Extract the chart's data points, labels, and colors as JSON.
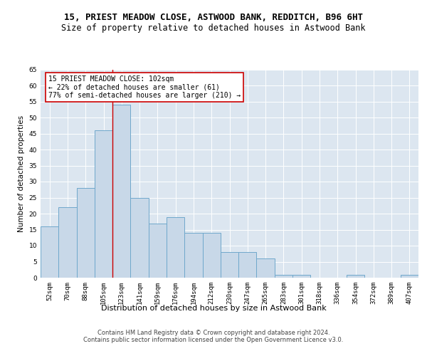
{
  "title": "15, PRIEST MEADOW CLOSE, ASTWOOD BANK, REDDITCH, B96 6HT",
  "subtitle": "Size of property relative to detached houses in Astwood Bank",
  "xlabel": "Distribution of detached houses by size in Astwood Bank",
  "ylabel": "Number of detached properties",
  "categories": [
    "52sqm",
    "70sqm",
    "88sqm",
    "105sqm",
    "123sqm",
    "141sqm",
    "159sqm",
    "176sqm",
    "194sqm",
    "212sqm",
    "230sqm",
    "247sqm",
    "265sqm",
    "283sqm",
    "301sqm",
    "318sqm",
    "336sqm",
    "354sqm",
    "372sqm",
    "389sqm",
    "407sqm"
  ],
  "values": [
    16,
    22,
    28,
    46,
    54,
    25,
    17,
    19,
    14,
    14,
    8,
    8,
    6,
    1,
    1,
    0,
    0,
    1,
    0,
    0,
    1
  ],
  "bar_color": "#c8d8e8",
  "bar_edge_color": "#6fa8cc",
  "vline_x": 3.5,
  "vline_color": "#cc0000",
  "annotation_text": "15 PRIEST MEADOW CLOSE: 102sqm\n← 22% of detached houses are smaller (61)\n77% of semi-detached houses are larger (210) →",
  "annotation_box_color": "#ffffff",
  "annotation_box_edge": "#cc0000",
  "ylim": [
    0,
    65
  ],
  "yticks": [
    0,
    5,
    10,
    15,
    20,
    25,
    30,
    35,
    40,
    45,
    50,
    55,
    60,
    65
  ],
  "footer": "Contains HM Land Registry data © Crown copyright and database right 2024.\nContains public sector information licensed under the Open Government Licence v3.0.",
  "background_color": "#dce6f0",
  "fig_background": "#ffffff",
  "title_fontsize": 9,
  "subtitle_fontsize": 8.5,
  "xlabel_fontsize": 8,
  "ylabel_fontsize": 7.5,
  "tick_fontsize": 6.5,
  "footer_fontsize": 6,
  "annotation_fontsize": 7
}
